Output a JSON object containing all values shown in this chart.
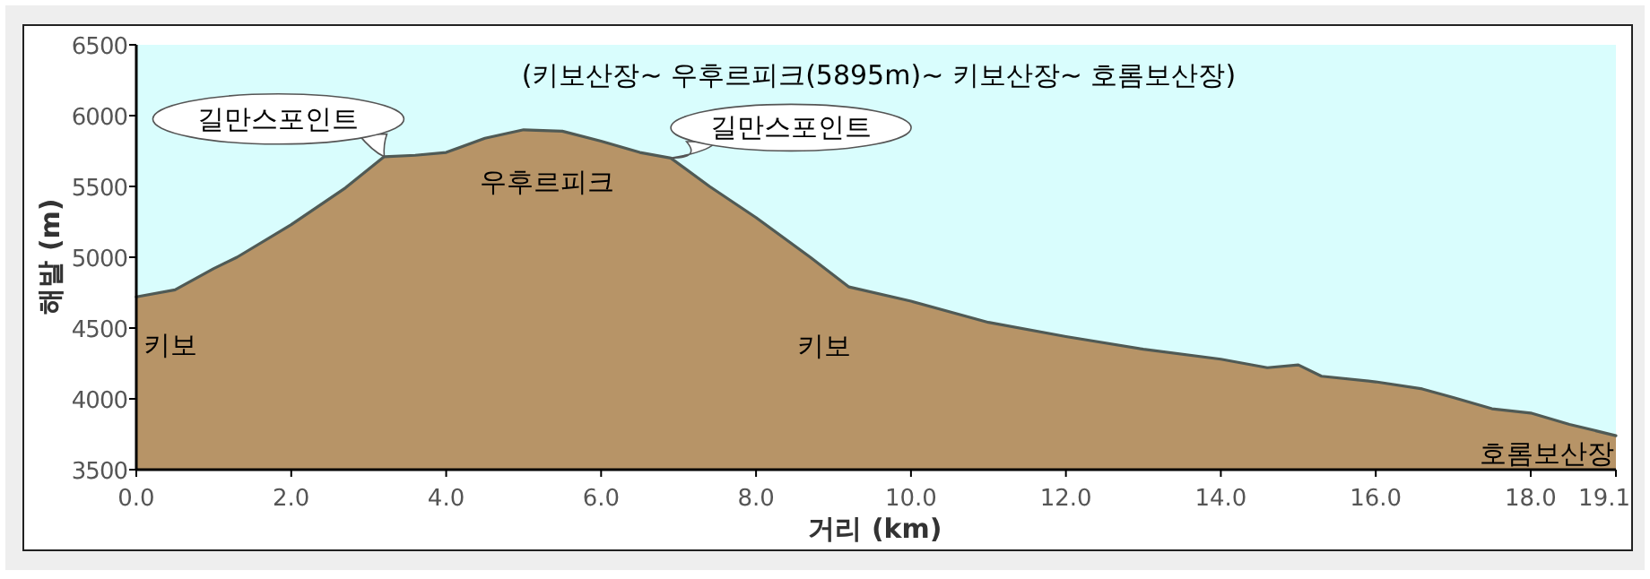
{
  "chart_data": {
    "type": "area",
    "title": "(키보산장~ 우후르피크(5895m)~ 키보산장~ 호롬보산장)",
    "xlabel": "거리 (km)",
    "ylabel": "해발 (m)",
    "xlim": [
      0,
      19.1
    ],
    "ylim": [
      3500,
      6500
    ],
    "xticks": [
      {
        "value": 0,
        "label": "0.0"
      },
      {
        "value": 2,
        "label": "2.0"
      },
      {
        "value": 4,
        "label": "4.0"
      },
      {
        "value": 6,
        "label": "6.0"
      },
      {
        "value": 8,
        "label": "8.0"
      },
      {
        "value": 10,
        "label": "10.0"
      },
      {
        "value": 12,
        "label": "12.0"
      },
      {
        "value": 14,
        "label": "14.0"
      },
      {
        "value": 16,
        "label": "16.0"
      },
      {
        "value": 18,
        "label": "18.0"
      },
      19.1
    ],
    "yticks": [
      3500,
      4000,
      4500,
      5000,
      5500,
      6000,
      6500
    ],
    "grid": false,
    "series": [
      {
        "color": "#b79467",
        "x": [
          0,
          0.5,
          1.0,
          1.3,
          2.0,
          2.7,
          3.2,
          3.6,
          4.0,
          4.5,
          5.0,
          5.5,
          6.0,
          6.5,
          6.9,
          7.4,
          8.0,
          8.7,
          9.2,
          10.0,
          11.0,
          12.0,
          13.0,
          14.0,
          14.6,
          15.0,
          15.3,
          16.0,
          16.6,
          17.0,
          17.5,
          18.0,
          18.5,
          19.1
        ],
        "values": [
          4720,
          4770,
          4920,
          5000,
          5230,
          5490,
          5710,
          5720,
          5740,
          5840,
          5900,
          5890,
          5820,
          5740,
          5700,
          5500,
          5280,
          5000,
          4790,
          4690,
          4540,
          4440,
          4350,
          4280,
          4220,
          4240,
          4160,
          4120,
          4070,
          4010,
          3930,
          3900,
          3820,
          3740
        ]
      }
    ],
    "annotations": [
      {
        "text": "길만스포인트",
        "x": 3.2,
        "y": 5710
      },
      {
        "text": "길만스포인트",
        "x": 6.9,
        "y": 5700
      },
      {
        "text": "우후르피크",
        "x": 5.0,
        "y": 5900
      },
      {
        "text": "키보",
        "x": 0,
        "y": 4720
      },
      {
        "text": "키보",
        "x": 9.2,
        "y": 4790
      },
      {
        "text": "호롬보산장",
        "x": 19.1,
        "y": 3740
      }
    ]
  }
}
